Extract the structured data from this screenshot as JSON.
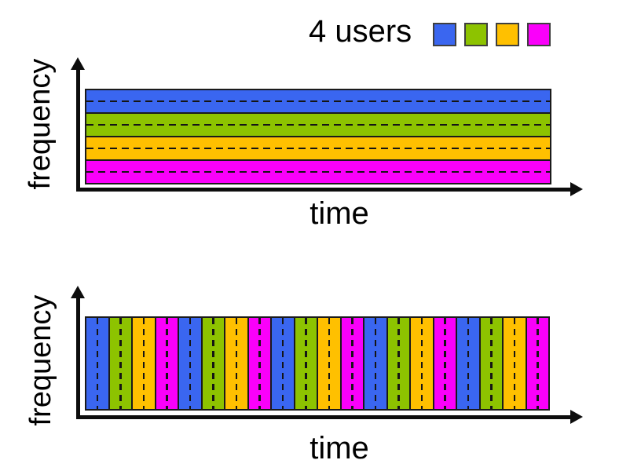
{
  "legend": {
    "label": "4 users",
    "swatches": [
      {
        "user": "user-1",
        "color_name": "blue",
        "color": "#3A66F0"
      },
      {
        "user": "user-2",
        "color_name": "green",
        "color": "#8DC300"
      },
      {
        "user": "user-3",
        "color_name": "yellow",
        "color": "#FFC000"
      },
      {
        "user": "user-4",
        "color_name": "magenta",
        "color": "#FA00FA"
      }
    ]
  },
  "colors": {
    "blue": "#3A66F0",
    "green": "#8DC300",
    "yellow": "#FFC000",
    "magenta": "#FA00FA"
  },
  "charts": [
    {
      "name": "frequency-division",
      "type": "area",
      "xlabel": "time",
      "ylabel": "frequency",
      "layout": "horizontal-bands-top-to-bottom",
      "bands": [
        "blue",
        "green",
        "yellow",
        "magenta"
      ]
    },
    {
      "name": "time-division",
      "type": "area",
      "xlabel": "time",
      "ylabel": "frequency",
      "layout": "vertical-slots-left-to-right",
      "slot_count": 20,
      "slots": [
        "blue",
        "green",
        "yellow",
        "magenta",
        "blue",
        "green",
        "yellow",
        "magenta",
        "blue",
        "green",
        "yellow",
        "magenta",
        "blue",
        "green",
        "yellow",
        "magenta",
        "blue",
        "green",
        "yellow",
        "magenta"
      ]
    }
  ]
}
